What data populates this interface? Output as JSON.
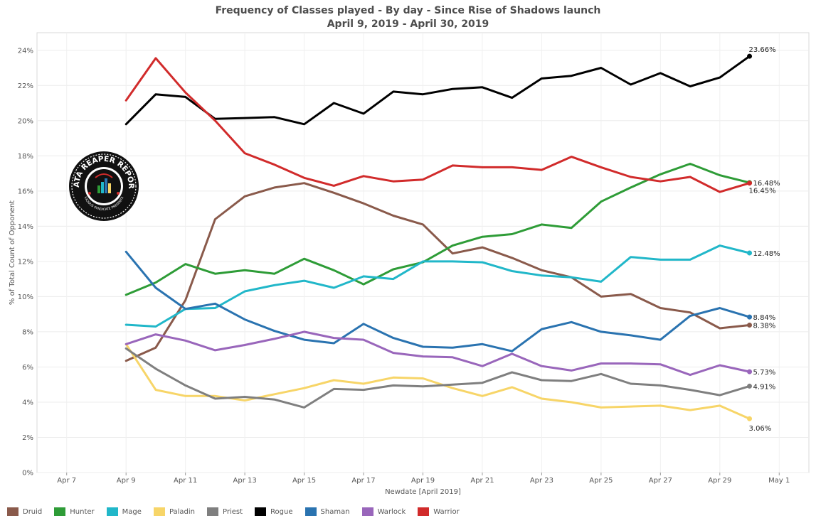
{
  "title_line1": "Frequency of Classes played - By day - Since Rise of Shadows launch",
  "title_line2": "April 9, 2019 - April 30, 2019",
  "logo": {
    "text_top": "DATA REAPER REPORT",
    "text_bottom": "VICIOUS SYNDICATE PRESENTS"
  },
  "chart_data": {
    "type": "line",
    "title": "Frequency of Classes played - By day - Since Rise of Shadows launch",
    "subtitle": "April 9, 2019 - April 30, 2019",
    "xlabel": "Newdate [April 2019]",
    "ylabel": "% of Total Count of Opponent",
    "x": [
      "2019-04-09",
      "2019-04-10",
      "2019-04-11",
      "2019-04-12",
      "2019-04-13",
      "2019-04-14",
      "2019-04-15",
      "2019-04-16",
      "2019-04-17",
      "2019-04-18",
      "2019-04-19",
      "2019-04-20",
      "2019-04-21",
      "2019-04-22",
      "2019-04-23",
      "2019-04-24",
      "2019-04-25",
      "2019-04-26",
      "2019-04-27",
      "2019-04-28",
      "2019-04-29",
      "2019-04-30"
    ],
    "xlim": [
      "2019-04-06",
      "2019-05-02"
    ],
    "x_ticks": [
      "Apr 7",
      "Apr 9",
      "Apr 11",
      "Apr 13",
      "Apr 15",
      "Apr 17",
      "Apr 19",
      "Apr 21",
      "Apr 23",
      "Apr 25",
      "Apr 27",
      "Apr 29",
      "May 1"
    ],
    "x_tick_dates": [
      "2019-04-07",
      "2019-04-09",
      "2019-04-11",
      "2019-04-13",
      "2019-04-15",
      "2019-04-17",
      "2019-04-19",
      "2019-04-21",
      "2019-04-23",
      "2019-04-25",
      "2019-04-27",
      "2019-04-29",
      "2019-05-01"
    ],
    "ylim": [
      0,
      25
    ],
    "y_ticks": [
      0,
      2,
      4,
      6,
      8,
      10,
      12,
      14,
      16,
      18,
      20,
      22,
      24
    ],
    "y_tick_labels": [
      "0%",
      "2%",
      "4%",
      "6%",
      "8%",
      "10%",
      "12%",
      "14%",
      "16%",
      "18%",
      "20%",
      "22%",
      "24%"
    ],
    "grid": true,
    "legend_position": "bottom",
    "series": [
      {
        "name": "Druid",
        "color": "#8a5a4b",
        "values": [
          6.35,
          7.1,
          9.8,
          14.4,
          15.7,
          16.2,
          16.45,
          15.9,
          15.3,
          14.6,
          14.1,
          12.45,
          12.8,
          12.2,
          11.5,
          11.1,
          10.0,
          10.15,
          9.35,
          9.1,
          8.2,
          8.38
        ],
        "end_label": "8.38%"
      },
      {
        "name": "Hunter",
        "color": "#2e9c37",
        "values": [
          10.1,
          10.8,
          11.85,
          11.3,
          11.5,
          11.3,
          12.15,
          11.5,
          10.7,
          11.55,
          11.95,
          12.9,
          13.4,
          13.55,
          14.1,
          13.9,
          15.4,
          16.2,
          16.95,
          17.55,
          16.9,
          16.48
        ],
        "end_label": "16.48%"
      },
      {
        "name": "Mage",
        "color": "#21b7c9",
        "values": [
          8.4,
          8.3,
          9.3,
          9.35,
          10.3,
          10.65,
          10.9,
          10.5,
          11.15,
          11.0,
          12.0,
          12.0,
          11.95,
          11.45,
          11.2,
          11.1,
          10.85,
          12.25,
          12.1,
          12.1,
          12.9,
          12.48
        ],
        "end_label": "12.48%"
      },
      {
        "name": "Paladin",
        "color": "#f7d568",
        "values": [
          7.3,
          4.7,
          4.35,
          4.35,
          4.1,
          4.45,
          4.8,
          5.25,
          5.05,
          5.4,
          5.35,
          4.8,
          4.35,
          4.85,
          4.2,
          4.0,
          3.7,
          3.75,
          3.8,
          3.55,
          3.8,
          3.06
        ],
        "end_label": "3.06%"
      },
      {
        "name": "Priest",
        "color": "#7f7f7f",
        "values": [
          7.05,
          5.9,
          4.95,
          4.2,
          4.3,
          4.15,
          3.7,
          4.75,
          4.7,
          4.95,
          4.9,
          5.0,
          5.1,
          5.7,
          5.25,
          5.2,
          5.6,
          5.05,
          4.95,
          4.7,
          4.4,
          4.91
        ],
        "end_label": "4.91%"
      },
      {
        "name": "Rogue",
        "color": "#000000",
        "values": [
          19.8,
          21.5,
          21.35,
          20.1,
          20.15,
          20.2,
          19.8,
          21.0,
          20.4,
          21.65,
          21.5,
          21.8,
          21.9,
          21.3,
          22.4,
          22.55,
          23.0,
          22.05,
          22.7,
          21.95,
          22.45,
          23.66
        ],
        "end_label": "23.66%"
      },
      {
        "name": "Shaman",
        "color": "#2a73b0",
        "values": [
          12.55,
          10.5,
          9.3,
          9.6,
          8.7,
          8.05,
          7.55,
          7.35,
          8.45,
          7.65,
          7.15,
          7.1,
          7.3,
          6.9,
          8.15,
          8.55,
          8.0,
          7.8,
          7.55,
          8.9,
          9.35,
          8.84
        ],
        "end_label": "8.84%"
      },
      {
        "name": "Warlock",
        "color": "#9966bb",
        "values": [
          7.3,
          7.85,
          7.5,
          6.95,
          7.25,
          7.6,
          8.0,
          7.65,
          7.55,
          6.8,
          6.6,
          6.55,
          6.05,
          6.75,
          6.05,
          5.8,
          6.2,
          6.2,
          6.15,
          5.55,
          6.1,
          5.73
        ],
        "end_label": "5.73%"
      },
      {
        "name": "Warrior",
        "color": "#d12b2b",
        "values": [
          21.15,
          23.55,
          21.6,
          20.0,
          18.15,
          17.5,
          16.75,
          16.3,
          16.85,
          16.55,
          16.65,
          17.45,
          17.35,
          17.35,
          17.2,
          17.95,
          17.35,
          16.8,
          16.55,
          16.8,
          15.95,
          16.45
        ],
        "end_label": "16.45%"
      }
    ]
  }
}
